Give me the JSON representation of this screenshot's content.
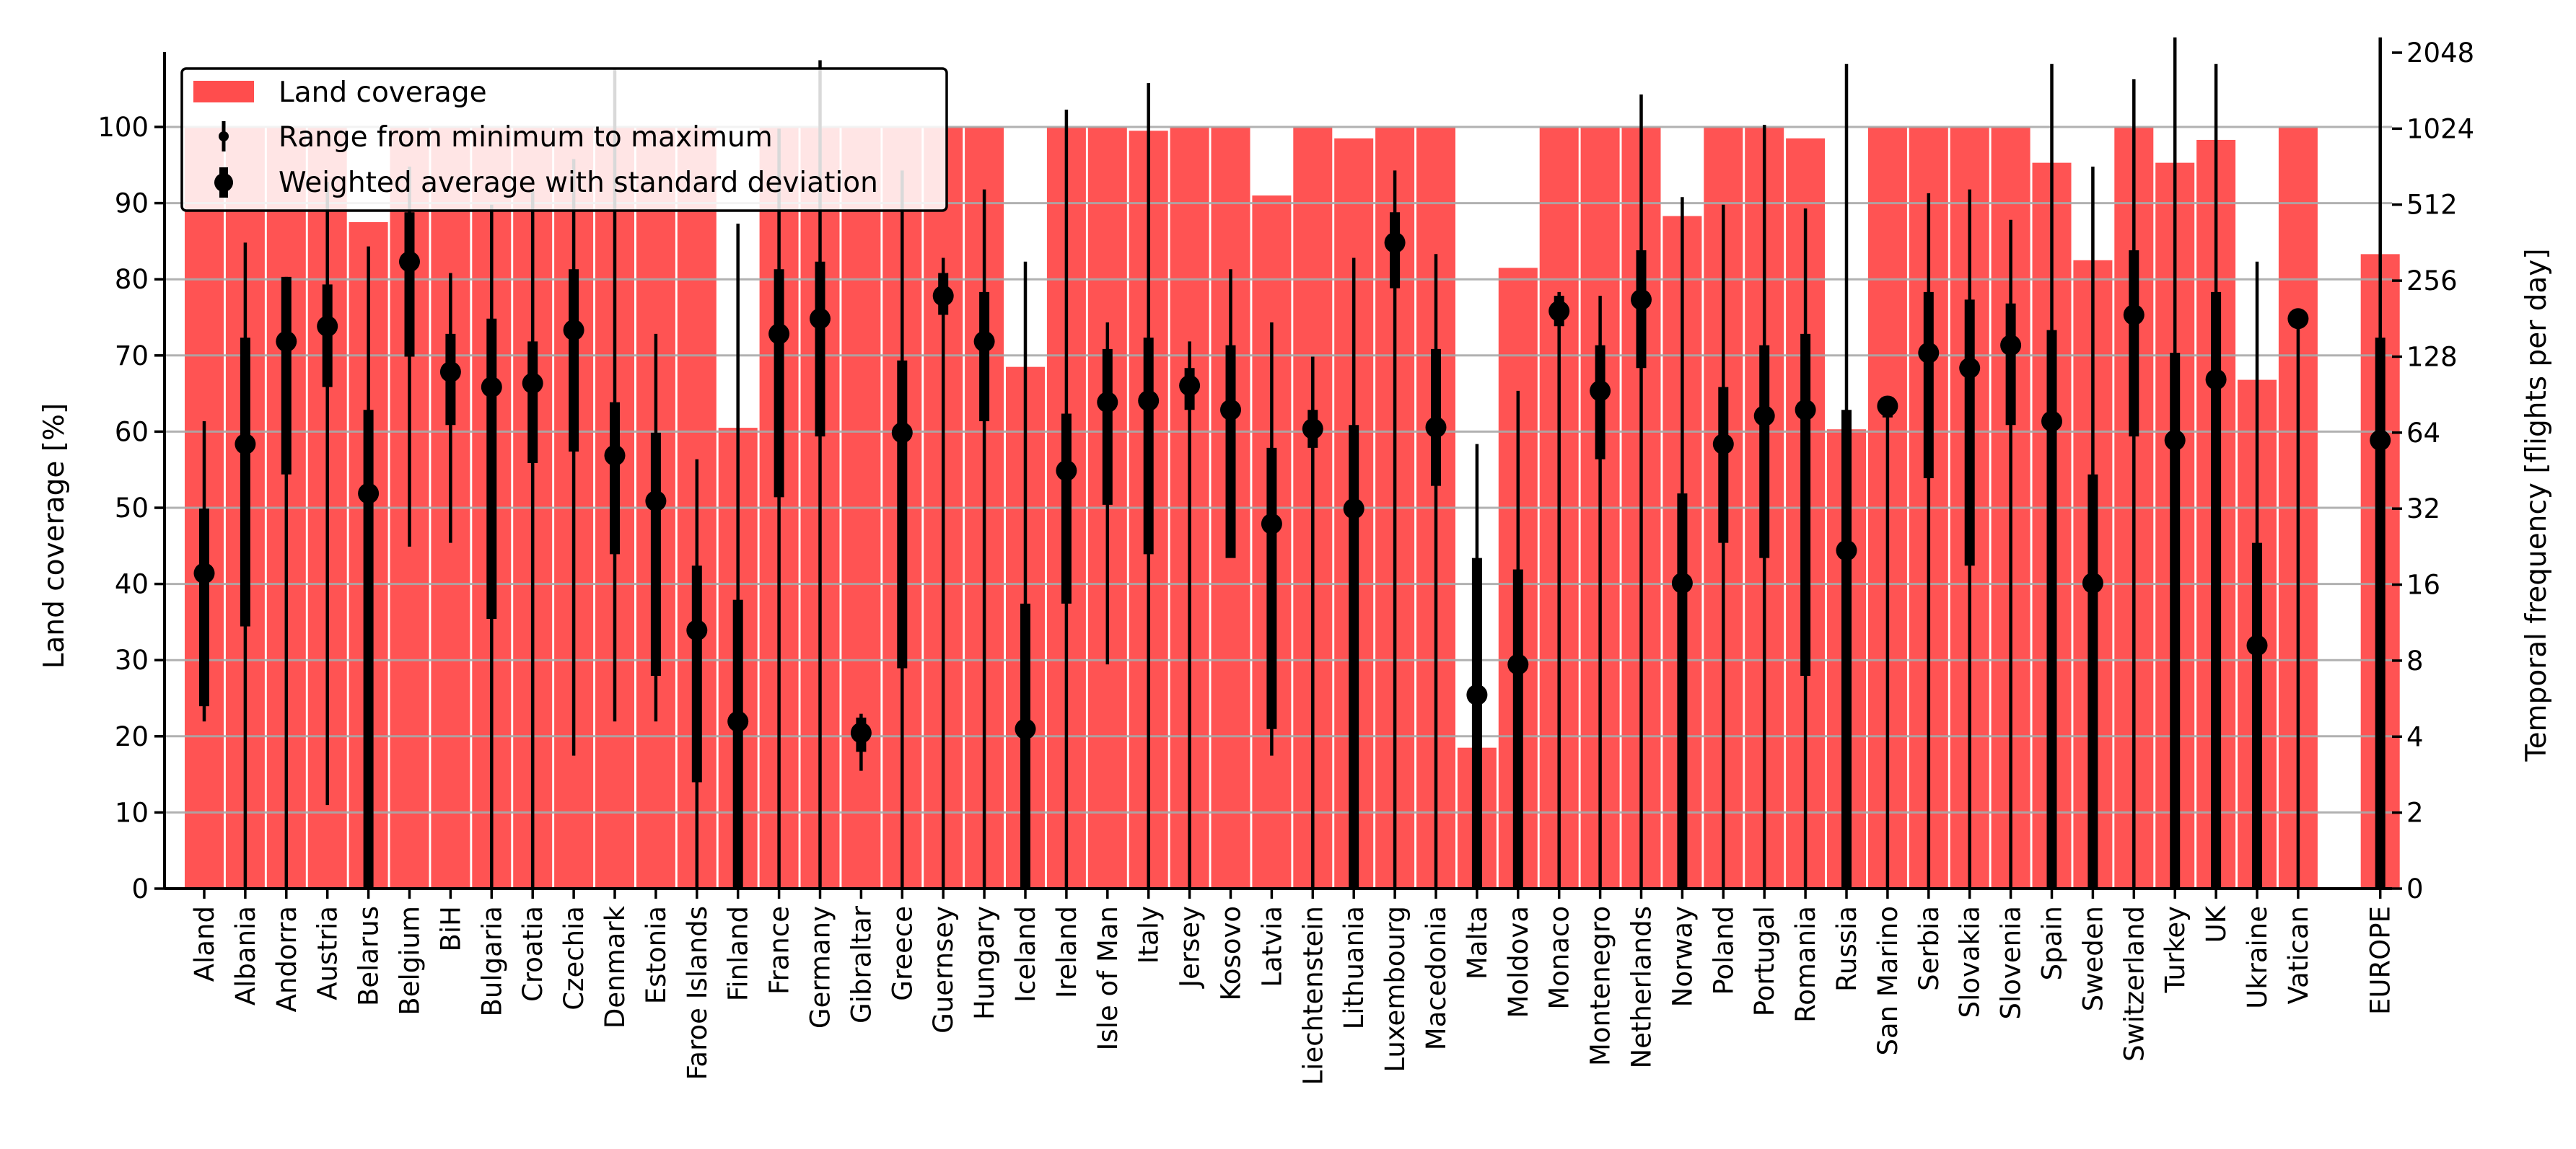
{
  "chart_data": {
    "type": "bar",
    "title": "",
    "xlabel": "",
    "ylabel": "Land coverage [%]",
    "ylabel_right": "Temporal frequency [flights per day]",
    "ylim": [
      0,
      110
    ],
    "yticks": [
      0,
      10,
      20,
      30,
      40,
      50,
      60,
      70,
      80,
      90,
      100
    ],
    "ylim_right_log2": [
      0,
      11
    ],
    "right_tick_labels": [
      "0",
      "2",
      "4",
      "8",
      "16",
      "32",
      "64",
      "128",
      "256",
      "512",
      "1024",
      "2048"
    ],
    "grid": true,
    "legend_position": "top-left",
    "colors": {
      "bar": "#ff4d4d",
      "marker": "#000000",
      "grid": "#b0b0b0"
    },
    "legend": [
      {
        "key": "bars",
        "label": "Land coverage"
      },
      {
        "key": "range",
        "label": "Range from minimum to maximum"
      },
      {
        "key": "avg",
        "label": "Weighted average with standard deviation"
      }
    ],
    "series": [
      {
        "name": "Land coverage",
        "axis": "left",
        "values": [
          100,
          100,
          100,
          100,
          87.5,
          100,
          100,
          100,
          100,
          100,
          100,
          100,
          100,
          60.5,
          100,
          100,
          100,
          100,
          100,
          100,
          68.5,
          100,
          100,
          99.5,
          100,
          100,
          91,
          100,
          98.5,
          100,
          100,
          18.5,
          81.5,
          100,
          100,
          100,
          88.3,
          100,
          100,
          98.5,
          60.3,
          100,
          100,
          100,
          100,
          95.3,
          82.5,
          100,
          95.3,
          98.3,
          66.8,
          100,
          83.3
        ]
      },
      {
        "name": "Weighted average (flights per day, log2 units)",
        "axis": "right",
        "values": [
          4.15,
          5.85,
          7.2,
          7.4,
          5.2,
          8.25,
          6.8,
          6.6,
          6.65,
          7.35,
          5.7,
          5.1,
          3.4,
          2.2,
          7.3,
          7.5,
          2.05,
          6.0,
          7.8,
          7.2,
          2.1,
          5.5,
          6.4,
          6.42,
          6.62,
          6.3,
          4.8,
          6.05,
          5.0,
          8.5,
          6.07,
          2.55,
          2.95,
          7.6,
          6.55,
          7.75,
          4.02,
          5.85,
          6.22,
          6.3,
          4.45,
          6.35,
          7.05,
          6.85,
          7.15,
          6.15,
          4.02,
          7.55,
          5.9,
          6.7,
          3.2,
          7.5,
          5.9
        ]
      },
      {
        "name": "Standard deviation low (log2 units)",
        "axis": "right",
        "values": [
          2.4,
          3.45,
          5.45,
          6.6,
          0,
          7.0,
          6.1,
          3.55,
          5.6,
          5.75,
          4.4,
          2.8,
          1.4,
          0,
          5.15,
          5.95,
          1.8,
          2.9,
          7.55,
          6.15,
          0,
          3.75,
          5.05,
          4.4,
          6.3,
          4.35,
          2.1,
          5.8,
          0,
          7.9,
          5.3,
          0,
          0,
          7.4,
          5.65,
          6.85,
          0,
          4.55,
          4.35,
          2.8,
          0,
          6.2,
          5.4,
          4.25,
          6.1,
          0,
          0,
          5.95,
          0,
          0,
          0,
          7.5,
          0
        ]
      },
      {
        "name": "Standard deviation high (log2 units)",
        "axis": "right",
        "values": [
          5.0,
          7.25,
          8.05,
          7.95,
          6.3,
          8.9,
          7.3,
          7.5,
          7.2,
          8.15,
          6.4,
          6.0,
          4.25,
          3.8,
          8.15,
          8.25,
          2.25,
          6.95,
          8.1,
          7.85,
          3.75,
          6.25,
          7.1,
          7.25,
          6.85,
          7.15,
          5.8,
          6.3,
          6.1,
          8.9,
          7.1,
          4.35,
          4.2,
          7.8,
          7.15,
          8.4,
          5.2,
          6.6,
          7.15,
          7.3,
          6.3,
          6.4,
          7.85,
          7.75,
          7.7,
          7.35,
          5.45,
          8.4,
          7.05,
          7.85,
          4.55,
          7.5,
          7.25
        ]
      },
      {
        "name": "Minimum (log2 units)",
        "axis": "right",
        "values": [
          2.2,
          0,
          0,
          1.1,
          0,
          4.5,
          4.55,
          0,
          0,
          1.75,
          2.2,
          2.2,
          0,
          0,
          0,
          0,
          1.55,
          0,
          0,
          0,
          0,
          0,
          2.95,
          0,
          0,
          5.3,
          1.75,
          0,
          0,
          0,
          0,
          0,
          0,
          0,
          0,
          0,
          0,
          0,
          0,
          0,
          0,
          0,
          0,
          0,
          0,
          0,
          0,
          0,
          1.1,
          0,
          0,
          0,
          0
        ]
      },
      {
        "name": "Maximum (log2 units)",
        "axis": "right",
        "values": [
          6.15,
          8.5,
          8.05,
          9.3,
          8.45,
          9.5,
          8.1,
          9.0,
          9.2,
          9.6,
          10.8,
          7.3,
          5.65,
          8.75,
          10.0,
          10.9,
          2.3,
          9.45,
          8.3,
          9.2,
          8.25,
          10.25,
          7.45,
          10.6,
          7.2,
          8.15,
          7.45,
          7.0,
          8.3,
          9.45,
          8.35,
          5.85,
          6.55,
          7.85,
          7.8,
          10.45,
          9.1,
          9.0,
          10.05,
          8.95,
          10.85,
          6.4,
          9.15,
          9.2,
          8.8,
          10.85,
          9.5,
          10.65,
          11.2,
          10.85,
          8.25,
          7.5,
          11.2
        ]
      }
    ],
    "categories": [
      "Aland",
      "Albania",
      "Andorra",
      "Austria",
      "Belarus",
      "Belgium",
      "BiH",
      "Bulgaria",
      "Croatia",
      "Czechia",
      "Denmark",
      "Estonia",
      "Faroe Islands",
      "Finland",
      "France",
      "Germany",
      "Gibraltar",
      "Greece",
      "Guernsey",
      "Hungary",
      "Iceland",
      "Ireland",
      "Isle of Man",
      "Italy",
      "Jersey",
      "Kosovo",
      "Latvia",
      "Liechtenstein",
      "Lithuania",
      "Luxembourg",
      "Macedonia",
      "Malta",
      "Moldova",
      "Monaco",
      "Montenegro",
      "Netherlands",
      "Norway",
      "Poland",
      "Portugal",
      "Romania",
      "Russia",
      "San Marino",
      "Serbia",
      "Slovakia",
      "Slovenia",
      "Spain",
      "Sweden",
      "Switzerland",
      "Turkey",
      "UK",
      "Ukraine",
      "Vatican",
      "EUROPE"
    ]
  }
}
